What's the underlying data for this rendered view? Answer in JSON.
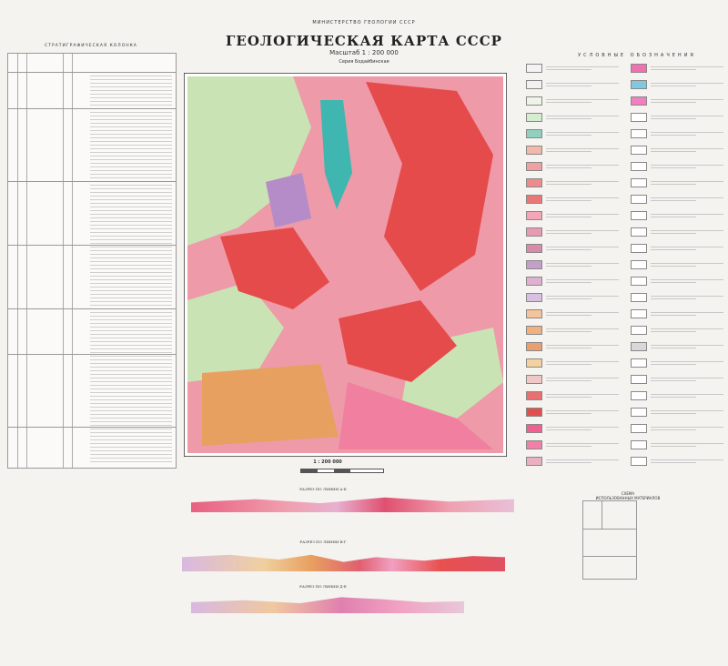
{
  "header": {
    "ministry": "МИНИСТЕРСТВО ГЕОЛОГИИ СССР",
    "title": "ГЕОЛОГИЧЕСКАЯ КАРТА СССР",
    "scale": "Масштаб 1 : 200 000",
    "series": "Серия Бодайбинская"
  },
  "stratigraphy": {
    "title": "СТРАТИГРАФИЧЕСКАЯ КОЛОНКА"
  },
  "legend": {
    "title": "УСЛОВНЫЕ ОБОЗНАЧЕНИЯ",
    "left_swatches": [
      "#f3f3f3",
      "#f1f1ef",
      "#eef5e6",
      "#d6ecd0",
      "#8fd0c0",
      "#f2b8a8",
      "#f0a0a0",
      "#ec8c8c",
      "#e87878",
      "#f4a6b8",
      "#e89ab0",
      "#d88aa8",
      "#c4a0c8",
      "#e0b0d0",
      "#d8c0e0",
      "#f5c49a",
      "#f0b080",
      "#e8a070",
      "#f3d2a0",
      "#f0c8c8",
      "#e87070",
      "#e05050",
      "#f06090",
      "#f080a8",
      "#e8b0c0"
    ],
    "right_swatches": [
      "#f070b0",
      "#80c8e0",
      "#f080c0",
      "#ffffff",
      "#ffffff",
      "#ffffff",
      "#ffffff",
      "#ffffff",
      "#ffffff",
      "#ffffff",
      "#ffffff",
      "#ffffff",
      "#ffffff",
      "#ffffff",
      "#ffffff",
      "#ffffff",
      "#ffffff",
      "#d8d8d8",
      "#ffffff",
      "#ffffff",
      "#ffffff",
      "#ffffff",
      "#ffffff",
      "#ffffff",
      "#ffffff"
    ]
  },
  "map": {
    "scale_label": "1 : 200 000",
    "colors": {
      "base": "#ee9aa8",
      "red": "#e64b4b",
      "pink": "#f07fa0",
      "green": "#c9e3b5",
      "teal": "#3fb6b0",
      "orange": "#e8a060",
      "purple": "#b58cc8"
    }
  },
  "index_scheme": {
    "title": "СХЕМА",
    "subtitle": "ИСПОЛЬЗОВАННЫХ МАТЕРИАЛОВ"
  },
  "sections": [
    {
      "title": "РАЗРЕЗ ПО ЛИНИИ А-Б"
    },
    {
      "title": "РАЗРЕЗ ПО ЛИНИИ В-Г"
    },
    {
      "title": "РАЗРЕЗ ПО ЛИНИИ Д-Е"
    }
  ]
}
